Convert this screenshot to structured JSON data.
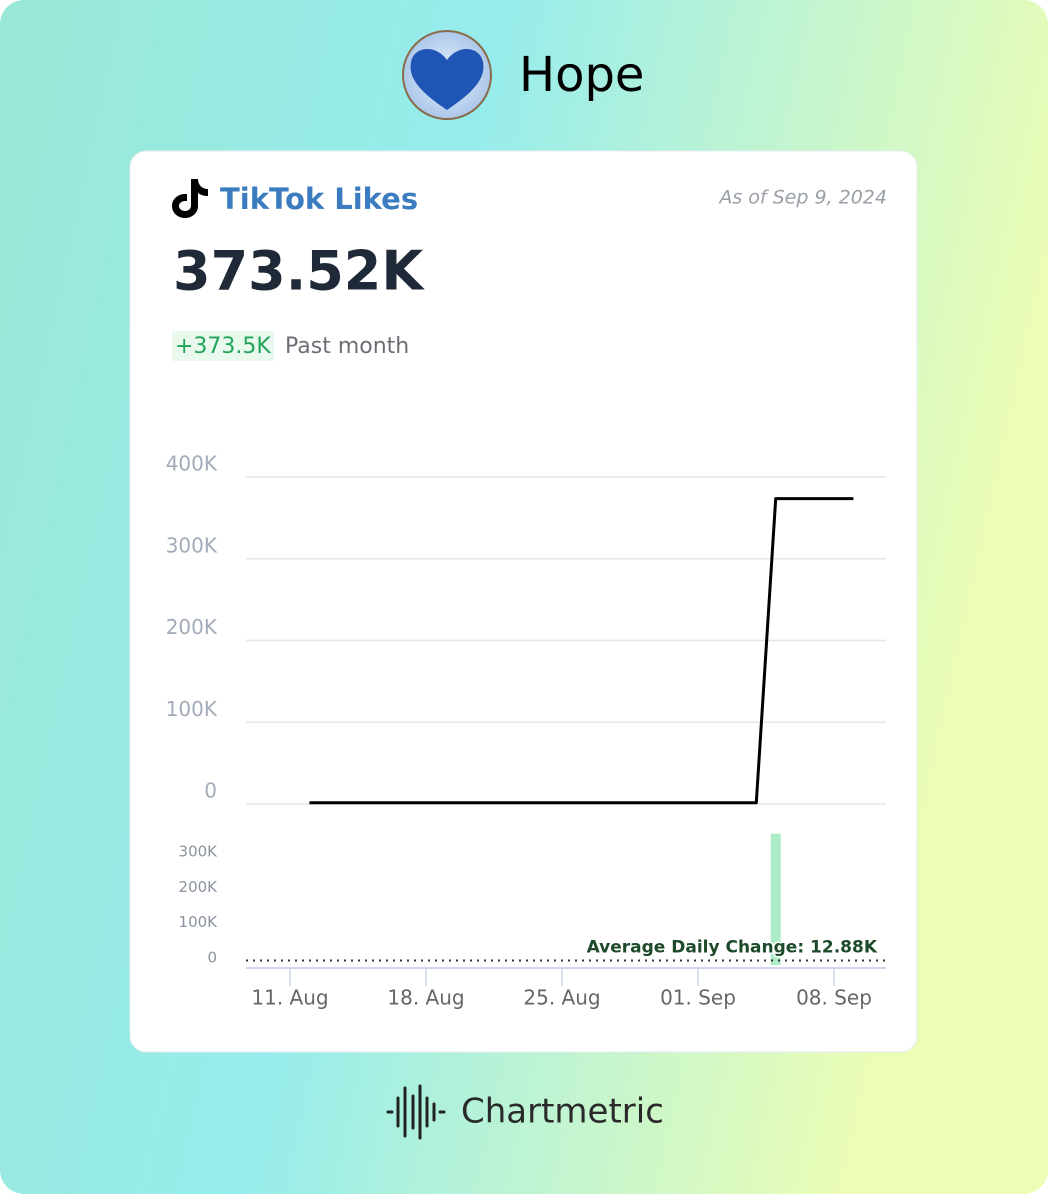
{
  "profile": {
    "name": "Hope"
  },
  "card": {
    "platform": "TikTok Likes",
    "as_of": "As of Sep 9, 2024",
    "total": "373.52K",
    "change": "+373.5K",
    "period": "Past month"
  },
  "brand": "Chartmetric",
  "chart_data": {
    "type": "line",
    "categories": [
      "11. Aug",
      null,
      null,
      null,
      null,
      null,
      null,
      "18. Aug",
      null,
      null,
      null,
      null,
      null,
      null,
      "25. Aug",
      null,
      null,
      null,
      null,
      null,
      null,
      "01. Sep",
      null,
      null,
      null,
      null,
      null,
      null,
      "08. Sep",
      null
    ],
    "series": [
      {
        "type": "line",
        "color": "#000000",
        "values": [
          null,
          1500,
          1500,
          1500,
          1500,
          1500,
          1500,
          1500,
          1500,
          1500,
          1500,
          1500,
          1500,
          1500,
          1500,
          1500,
          1500,
          1500,
          1500,
          1500,
          1500,
          1500,
          1500,
          1500,
          1500,
          373520,
          373520,
          373520,
          373520,
          373520
        ]
      },
      {
        "type": "bar",
        "axis": "y2",
        "color": "#abebc6",
        "values": [
          null,
          0,
          0,
          0,
          0,
          0,
          0,
          0,
          0,
          0,
          0,
          0,
          0,
          0,
          0,
          0,
          0,
          0,
          0,
          0,
          0,
          0,
          0,
          0,
          0,
          372020,
          0,
          0,
          0,
          0
        ]
      }
    ],
    "ylim": [
      0,
      400000
    ],
    "yticks": [
      0,
      {
        "value": 100000,
        "label": "100K"
      },
      {
        "value": 200000,
        "label": "200K"
      },
      {
        "value": 300000,
        "label": "300K"
      },
      {
        "value": 400000,
        "label": "400K"
      }
    ],
    "y2lim": [
      0,
      400000
    ],
    "y2ticks": [
      0,
      {
        "value": 100000,
        "label": "100K"
      },
      {
        "value": 200000,
        "label": "200K"
      },
      {
        "value": 300000,
        "label": "300K"
      }
    ],
    "average": {
      "value": 12880,
      "label": "Average Daily Change: 12.88K"
    },
    "grid": true
  }
}
